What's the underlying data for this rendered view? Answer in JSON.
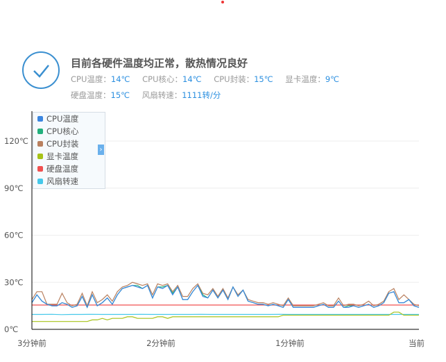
{
  "status": {
    "title": "目前各硬件温度均正常，散热情况良好",
    "icon": "check-circle-icon",
    "readings": [
      {
        "label": "CPU温度：",
        "value": "14℃"
      },
      {
        "label": "CPU核心：",
        "value": "14℃"
      },
      {
        "label": "CPU封装：",
        "value": "15℃"
      },
      {
        "label": "显卡温度：",
        "value": "9℃"
      },
      {
        "label": "硬盘温度：",
        "value": "15℃"
      },
      {
        "label": "风扇转速：",
        "value": "1111转/分"
      }
    ]
  },
  "chart_data": {
    "type": "line",
    "yticks": [
      "0℃",
      "30℃",
      "60℃",
      "90℃",
      "120℃"
    ],
    "ylim": [
      0,
      120
    ],
    "xticks": [
      "3分钟前",
      "2分钟前",
      "1分钟前",
      "当前"
    ],
    "grid": true,
    "legend_placement": "top-left",
    "series": [
      {
        "name": "CPU温度",
        "color": "#3b86e0",
        "values": [
          17,
          22,
          18,
          16,
          15,
          15,
          17,
          16,
          14,
          15,
          21,
          14,
          22,
          15,
          17,
          20,
          16,
          22,
          26,
          27,
          28,
          27,
          26,
          28,
          20,
          27,
          26,
          28,
          22,
          27,
          19,
          19,
          24,
          28,
          21,
          20,
          25,
          20,
          25,
          19,
          27,
          21,
          25,
          18,
          17,
          16,
          16,
          15,
          16,
          15,
          14,
          19,
          14,
          14,
          14,
          14,
          14,
          15,
          16,
          14,
          14,
          18,
          14,
          14,
          15,
          14,
          15,
          16,
          14,
          15,
          17,
          23,
          24,
          17,
          17,
          19,
          15,
          14
        ]
      },
      {
        "name": "CPU核心",
        "color": "#22b07d",
        "values": [
          17,
          22,
          18,
          16,
          15,
          15,
          17,
          16,
          14,
          15,
          21,
          14,
          22,
          15,
          17,
          20,
          16,
          22,
          26,
          27,
          28,
          28,
          26,
          28,
          20,
          27,
          27,
          28,
          23,
          27,
          19,
          19,
          24,
          28,
          22,
          20,
          25,
          20,
          25,
          19,
          27,
          21,
          25,
          18,
          17,
          16,
          16,
          15,
          16,
          15,
          14,
          19,
          14,
          14,
          14,
          14,
          14,
          15,
          16,
          14,
          14,
          18,
          14,
          15,
          15,
          14,
          15,
          16,
          14,
          15,
          17,
          23,
          24,
          17,
          17,
          19,
          15,
          14
        ]
      },
      {
        "name": "CPU封装",
        "color": "#b9805f",
        "values": [
          19,
          24,
          24,
          16,
          16,
          16,
          23,
          17,
          15,
          16,
          23,
          15,
          24,
          17,
          19,
          22,
          18,
          24,
          27,
          28,
          30,
          29,
          28,
          29,
          22,
          29,
          28,
          29,
          24,
          28,
          21,
          21,
          26,
          29,
          23,
          22,
          26,
          21,
          26,
          20,
          27,
          22,
          25,
          19,
          18,
          17,
          17,
          16,
          17,
          16,
          15,
          20,
          15,
          15,
          15,
          15,
          15,
          16,
          17,
          15,
          15,
          20,
          15,
          16,
          16,
          15,
          16,
          18,
          15,
          16,
          18,
          24,
          26,
          19,
          22,
          19,
          16,
          15
        ]
      },
      {
        "name": "显卡温度",
        "color": "#a6c218",
        "values": [
          5,
          5,
          5,
          5,
          5,
          5,
          5,
          5,
          5,
          5,
          5,
          5,
          6,
          6,
          7,
          6,
          7,
          7,
          7,
          8,
          8,
          7,
          7,
          7,
          7,
          8,
          8,
          7,
          8,
          8,
          8,
          8,
          8,
          8,
          8,
          8,
          8,
          8,
          8,
          8,
          8,
          8,
          8,
          8,
          8,
          8,
          8,
          8,
          8,
          8,
          9,
          9,
          9,
          9,
          9,
          9,
          9,
          9,
          9,
          9,
          9,
          9,
          9,
          9,
          9,
          9,
          9,
          9,
          9,
          9,
          9,
          9,
          11,
          11,
          9,
          9,
          9,
          9
        ]
      },
      {
        "name": "硬盘温度",
        "color": "#f05050",
        "values": [
          15.5,
          15.5,
          15.5,
          15.5,
          15.5,
          15.5,
          15.5,
          15.5,
          15.5,
          15.5,
          15.5,
          15.5,
          15.5,
          15.5,
          15.5,
          15.5,
          15.5,
          15.5,
          15.5,
          15.5,
          15.5,
          15.5,
          15.5,
          15.5,
          15.5,
          15.5,
          15.5,
          15.5,
          15.5,
          15.5,
          15.5,
          15.5,
          15.5,
          15.5,
          15.5,
          15.5,
          15.5,
          15.5,
          15.5,
          15.5
        ]
      },
      {
        "name": "风扇转速",
        "color": "#45c8ea",
        "values": [
          9.5,
          9.5,
          9.6,
          9.4,
          9.5,
          9.5,
          9.6,
          9.5,
          9.5,
          9.5,
          9.5,
          9.6,
          9.5,
          9.5,
          9.5,
          9.5,
          9.5,
          9.6,
          9.5,
          9.5,
          9.5,
          9.5,
          9.5,
          9.5,
          9.5,
          9.6,
          9.5,
          9.5,
          9.5,
          9.5,
          9.5,
          9.5,
          9.5,
          9.5,
          9.5,
          9.5,
          9.5,
          9.5,
          9.5,
          9.5
        ]
      }
    ]
  }
}
